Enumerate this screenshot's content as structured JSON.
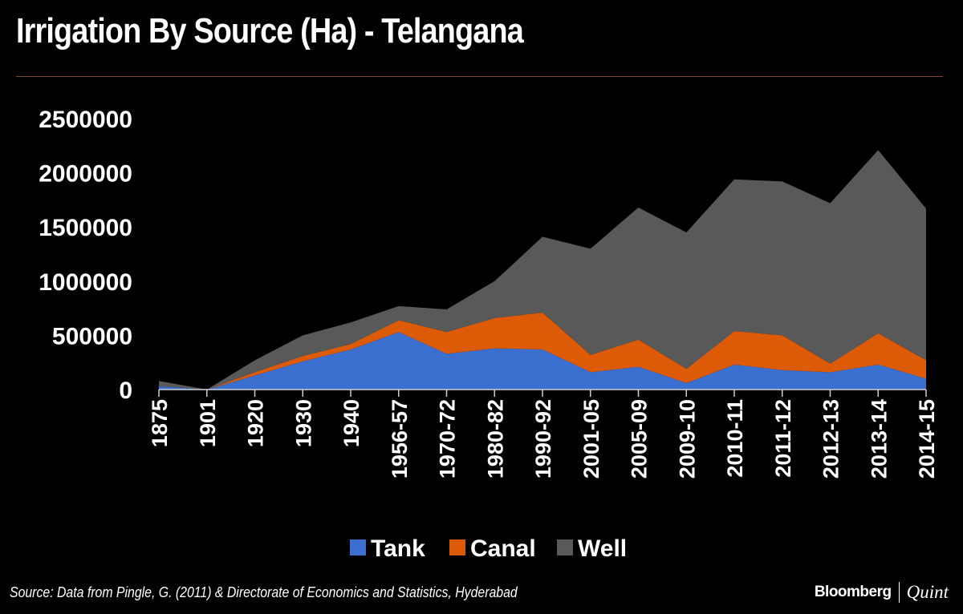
{
  "title": "Irrigation By Source (Ha) - Telangana",
  "source": "Source: Data from Pingle, G. (2011) & Directorate of Economics and Statistics, Hyderabad",
  "brand": {
    "bloomberg": "Bloomberg",
    "quint": "Quint"
  },
  "colors": {
    "tank": "#3a6fd0",
    "canal": "#dd5a07",
    "well": "#595959",
    "rule": "#7a4a32"
  },
  "chart_data": {
    "type": "area",
    "stacked": true,
    "title": "Irrigation By Source (Ha) - Telangana",
    "xlabel": "",
    "ylabel": "",
    "ylim": [
      0,
      2500000
    ],
    "yticks": [
      0,
      500000,
      1000000,
      1500000,
      2000000,
      2500000
    ],
    "ytick_labels": [
      "0",
      "500000",
      "1000000",
      "1500000",
      "2000000",
      "2500000"
    ],
    "grid": false,
    "legend_position": "bottom-center",
    "categories": [
      "1875",
      "1901",
      "1920",
      "1930",
      "1940",
      "1956-57",
      "1970-72",
      "1980-82",
      "1990-92",
      "2001-05",
      "2005-09",
      "2009-10",
      "2010-11",
      "2011-12",
      "2012-13",
      "2013-14",
      "2014-15"
    ],
    "series": [
      {
        "name": "Tank",
        "color": "#3a6fd0",
        "values": [
          30000,
          0,
          130000,
          260000,
          370000,
          530000,
          330000,
          380000,
          370000,
          160000,
          210000,
          60000,
          230000,
          180000,
          160000,
          230000,
          100000
        ]
      },
      {
        "name": "Canal",
        "color": "#dd5a07",
        "values": [
          0,
          0,
          30000,
          50000,
          50000,
          110000,
          200000,
          280000,
          340000,
          160000,
          250000,
          130000,
          310000,
          320000,
          80000,
          290000,
          170000
        ]
      },
      {
        "name": "Well",
        "color": "#595959",
        "values": [
          50000,
          0,
          110000,
          190000,
          200000,
          130000,
          210000,
          340000,
          700000,
          980000,
          1220000,
          1260000,
          1400000,
          1420000,
          1480000,
          1690000,
          1400000
        ]
      }
    ]
  }
}
